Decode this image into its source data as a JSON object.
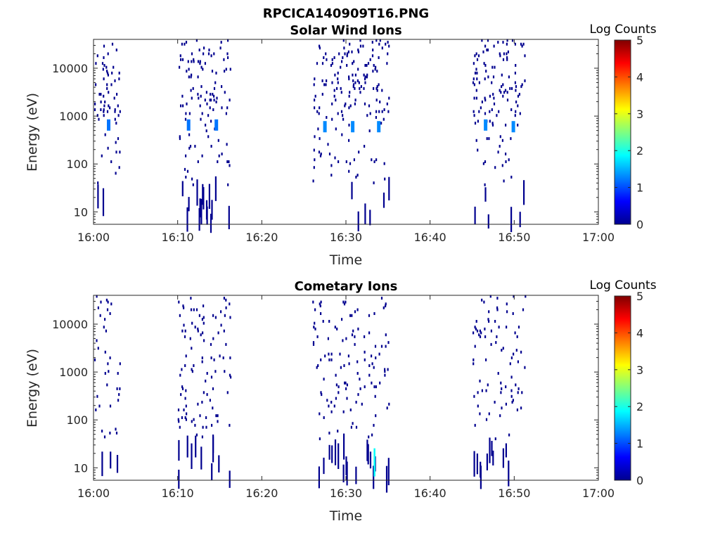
{
  "figure": {
    "title": "RPCICA140909T16.PNG"
  },
  "chart_data": [
    {
      "type": "heatmap",
      "title": "Solar Wind Ions",
      "xlabel": "Time",
      "ylabel": "Energy (eV)",
      "x_ticks": [
        "16:00",
        "16:10",
        "16:20",
        "16:30",
        "16:40",
        "16:50",
        "17:00"
      ],
      "xlim": [
        "16:00",
        "17:00"
      ],
      "y_scale": "log",
      "y_ticks": [
        "10",
        "100",
        "1000",
        "10000"
      ],
      "ylim": [
        5.5,
        40000
      ],
      "colorbar": {
        "label": "Log Counts",
        "range": [
          0,
          5
        ],
        "ticks": [
          "0",
          "1",
          "2",
          "3",
          "4",
          "5"
        ],
        "colormap": "jet"
      },
      "active_intervals": [
        [
          "16:00",
          "16:03"
        ],
        [
          "16:10",
          "16:16"
        ],
        [
          "16:26",
          "16:35"
        ],
        [
          "16:45",
          "16:51"
        ]
      ],
      "enhanced_cells": [
        {
          "t": "16:01.8",
          "energy": 650,
          "log_counts": 1.2
        },
        {
          "t": "16:11.3",
          "energy": 650,
          "log_counts": 1.2
        },
        {
          "t": "16:14.6",
          "energy": 650,
          "log_counts": 1.2
        },
        {
          "t": "16:27.5",
          "energy": 600,
          "log_counts": 1.3
        },
        {
          "t": "16:30.8",
          "energy": 600,
          "log_counts": 1.3
        },
        {
          "t": "16:33.9",
          "energy": 600,
          "log_counts": 1.3
        },
        {
          "t": "16:46.6",
          "energy": 650,
          "log_counts": 1.3
        },
        {
          "t": "16:49.9",
          "energy": 600,
          "log_counts": 1.3
        }
      ]
    },
    {
      "type": "heatmap",
      "title": "Cometary Ions",
      "xlabel": "Time",
      "ylabel": "Energy (eV)",
      "x_ticks": [
        "16:00",
        "16:10",
        "16:20",
        "16:30",
        "16:40",
        "16:50",
        "17:00"
      ],
      "xlim": [
        "16:00",
        "17:00"
      ],
      "y_scale": "log",
      "y_ticks": [
        "10",
        "100",
        "1000",
        "10000"
      ],
      "ylim": [
        5.5,
        40000
      ],
      "colorbar": {
        "label": "Log Counts",
        "range": [
          0,
          5
        ],
        "ticks": [
          "0",
          "1",
          "2",
          "3",
          "4",
          "5"
        ],
        "colormap": "jet"
      },
      "active_intervals": [
        [
          "16:00",
          "16:03"
        ],
        [
          "16:10",
          "16:16"
        ],
        [
          "16:26",
          "16:35"
        ],
        [
          "16:45",
          "16:51"
        ]
      ],
      "enhanced_cells": [
        {
          "t": "16:33.5",
          "energy": 13,
          "log_counts": 1.9
        }
      ]
    }
  ]
}
